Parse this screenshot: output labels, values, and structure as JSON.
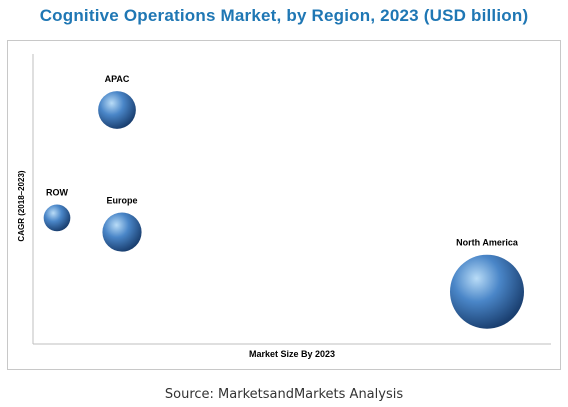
{
  "page": {
    "title": "Cognitive Operations Market, by Region, 2023 (USD billion)",
    "source": "Source: MarketsandMarkets Analysis"
  },
  "colors": {
    "title": "#1f77b4",
    "bubble_highlight": "#b9dcf7",
    "bubble_mid": "#4a86c8",
    "bubble_dark": "#1a3f70",
    "axis": "#bfbfbf"
  },
  "chart_data": {
    "type": "scatter",
    "subtype": "bubble",
    "title": "Cognitive Operations Market, by Region, 2023 (USD billion)",
    "xlabel": "Market Size By 2023",
    "ylabel": "CAGR (2018–2023)",
    "xlim": [
      0,
      100
    ],
    "ylim": [
      0,
      100
    ],
    "axis_ticks": false,
    "grid": false,
    "legend": "none",
    "points": [
      {
        "label": "APAC",
        "x": 16,
        "y": 81,
        "size": 2.6
      },
      {
        "label": "ROW",
        "x": 4,
        "y": 43,
        "size": 1.3
      },
      {
        "label": "Europe",
        "x": 17,
        "y": 38,
        "size": 2.8
      },
      {
        "label": "North America",
        "x": 90,
        "y": 17,
        "size": 10
      }
    ]
  }
}
